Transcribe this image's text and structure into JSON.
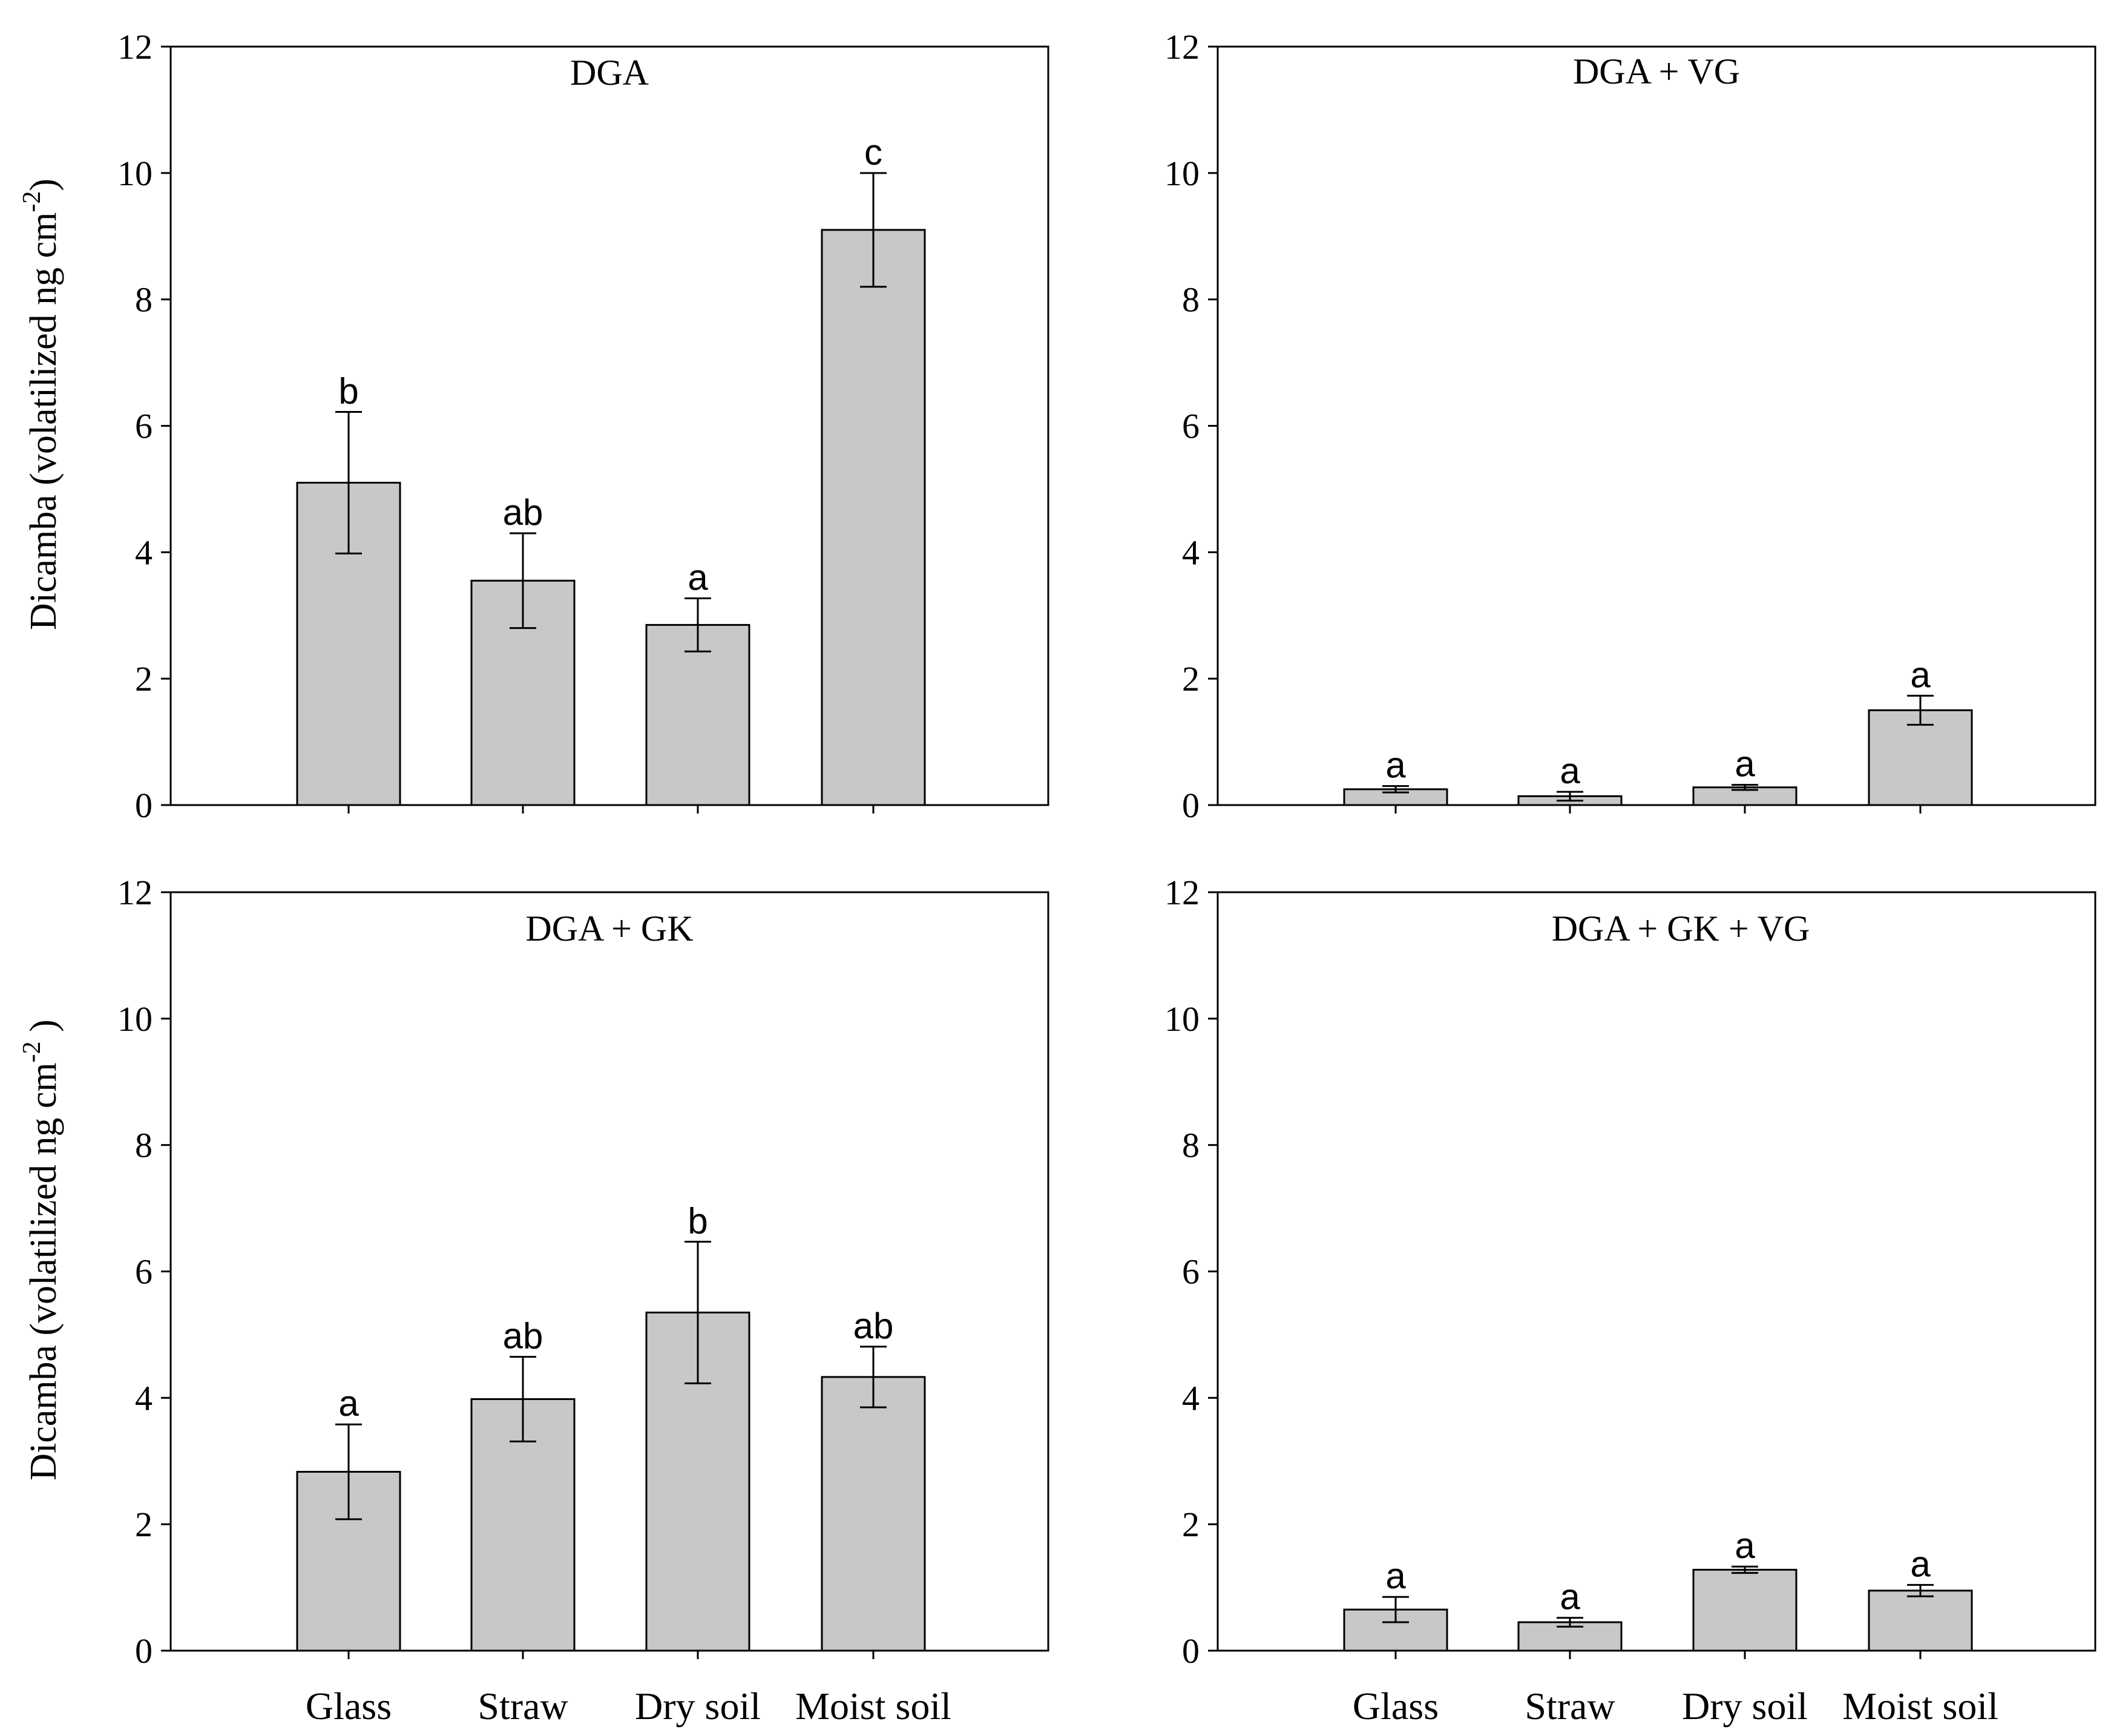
{
  "chart_data": [
    {
      "type": "bar",
      "title": "DGA",
      "categories": [
        "Glass",
        "Straw",
        "Dry soil",
        "Moist soil"
      ],
      "values": [
        5.1,
        3.55,
        2.85,
        9.1
      ],
      "errors": [
        1.12,
        0.75,
        0.42,
        0.9
      ],
      "letters": [
        "b",
        "ab",
        "a",
        "c"
      ],
      "ylabel": "Dicamba (volatilized ng cm-2)",
      "ylim": [
        0,
        12
      ],
      "yticks": [
        "0",
        "2",
        "4",
        "6",
        "8",
        "10",
        "12"
      ],
      "bar_color": "#c8c8c8",
      "position": "top-left"
    },
    {
      "type": "bar",
      "title": "DGA + VG",
      "categories": [
        "Glass",
        "Straw",
        "Dry soil",
        "Moist soil"
      ],
      "values": [
        0.25,
        0.14,
        0.28,
        1.5
      ],
      "errors": [
        0.05,
        0.07,
        0.04,
        0.23
      ],
      "letters": [
        "a",
        "a",
        "a",
        "a"
      ],
      "ylabel": "",
      "ylim": [
        0,
        12
      ],
      "yticks": [
        "0",
        "2",
        "4",
        "6",
        "8",
        "10",
        "12"
      ],
      "bar_color": "#c8c8c8",
      "position": "top-right"
    },
    {
      "type": "bar",
      "title": "DGA + GK",
      "categories": [
        "Glass",
        "Straw",
        "Dry soil",
        "Moist soil"
      ],
      "values": [
        2.83,
        3.98,
        5.35,
        4.33
      ],
      "errors": [
        0.75,
        0.67,
        1.12,
        0.48
      ],
      "letters": [
        "a",
        "ab",
        "b",
        "ab"
      ],
      "ylabel": "Dicamba (volatilized ng cm-2 )",
      "ylim": [
        0,
        12
      ],
      "yticks": [
        "0",
        "2",
        "4",
        "6",
        "8",
        "10",
        "12"
      ],
      "bar_color": "#c8c8c8",
      "position": "bottom-left"
    },
    {
      "type": "bar",
      "title": "DGA + GK + VG",
      "categories": [
        "Glass",
        "Straw",
        "Dry soil",
        "Moist soil"
      ],
      "values": [
        0.65,
        0.45,
        1.28,
        0.95
      ],
      "errors": [
        0.2,
        0.07,
        0.05,
        0.09
      ],
      "letters": [
        "a",
        "a",
        "a",
        "a"
      ],
      "ylabel": "",
      "ylim": [
        0,
        12
      ],
      "yticks": [
        "0",
        "2",
        "4",
        "6",
        "8",
        "10",
        "12"
      ],
      "bar_color": "#c8c8c8",
      "position": "bottom-right"
    }
  ],
  "ylabel_parts": {
    "prefix": "Dicamba (volatilized ng cm",
    "superscript": "-2",
    "suffix_top": ")",
    "suffix_bottom": " )"
  }
}
